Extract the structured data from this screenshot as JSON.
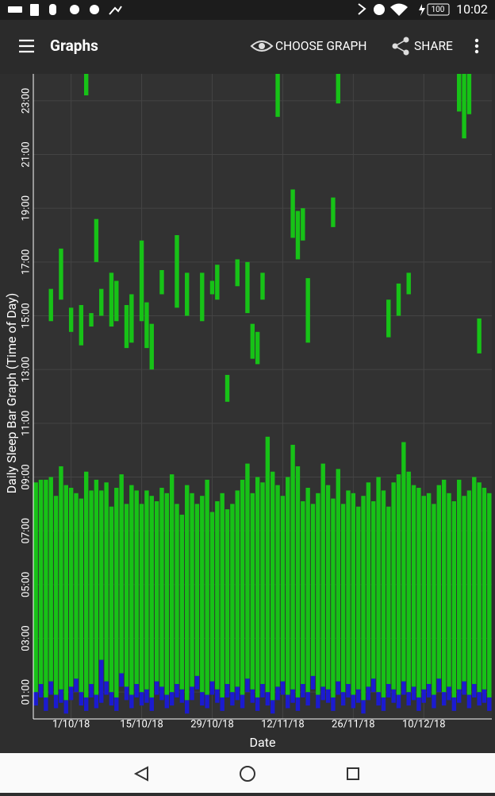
{
  "status_bar": {
    "battery": "100",
    "time": "10:02"
  },
  "app_bar": {
    "title": "Graphs",
    "actions": [
      "CHOOSE GRAPH",
      "SHARE"
    ]
  },
  "chart_data": {
    "type": "range-bar",
    "ylabel": "Daily Sleep Bar Graph (Time of Day)",
    "xlabel": "Date",
    "ylim": [
      0,
      24
    ],
    "yticks": [
      {
        "value": 1,
        "label": "01:00"
      },
      {
        "value": 3,
        "label": "03:00"
      },
      {
        "value": 5,
        "label": "05:00"
      },
      {
        "value": 7,
        "label": "07:00"
      },
      {
        "value": 9,
        "label": "09:00"
      },
      {
        "value": 11,
        "label": "11:00"
      },
      {
        "value": 13,
        "label": "13:00"
      },
      {
        "value": 15,
        "label": "15:00"
      },
      {
        "value": 17,
        "label": "17:00"
      },
      {
        "value": 19,
        "label": "19:00"
      },
      {
        "value": 21,
        "label": "21:00"
      },
      {
        "value": 23,
        "label": "23:00"
      }
    ],
    "xlim": [
      "2018-09-24",
      "2018-12-24"
    ],
    "xticks": [
      {
        "value": "2018-10-01",
        "label": "1/10/18"
      },
      {
        "value": "2018-10-15",
        "label": "15/10/18"
      },
      {
        "value": "2018-10-29",
        "label": "29/10/18"
      },
      {
        "value": "2018-11-12",
        "label": "12/11/18"
      },
      {
        "value": "2018-11-26",
        "label": "26/11/18"
      },
      {
        "value": "2018-12-10",
        "label": "10/12/18"
      }
    ],
    "grid": true,
    "colors": {
      "sleep": "#17c217",
      "onset": "#1b1bd0"
    },
    "nights": {
      "dates": [
        "2018-09-24",
        "2018-09-25",
        "2018-09-26",
        "2018-09-27",
        "2018-09-28",
        "2018-09-29",
        "2018-09-30",
        "2018-10-01",
        "2018-10-02",
        "2018-10-03",
        "2018-10-04",
        "2018-10-05",
        "2018-10-06",
        "2018-10-07",
        "2018-10-08",
        "2018-10-09",
        "2018-10-10",
        "2018-10-11",
        "2018-10-12",
        "2018-10-13",
        "2018-10-14",
        "2018-10-15",
        "2018-10-16",
        "2018-10-17",
        "2018-10-18",
        "2018-10-19",
        "2018-10-20",
        "2018-10-21",
        "2018-10-22",
        "2018-10-23",
        "2018-10-24",
        "2018-10-25",
        "2018-10-26",
        "2018-10-27",
        "2018-10-28",
        "2018-10-29",
        "2018-10-30",
        "2018-10-31",
        "2018-11-01",
        "2018-11-02",
        "2018-11-03",
        "2018-11-04",
        "2018-11-05",
        "2018-11-06",
        "2018-11-07",
        "2018-11-08",
        "2018-11-09",
        "2018-11-10",
        "2018-11-11",
        "2018-11-12",
        "2018-11-13",
        "2018-11-14",
        "2018-11-15",
        "2018-11-16",
        "2018-11-17",
        "2018-11-18",
        "2018-11-19",
        "2018-11-20",
        "2018-11-21",
        "2018-11-22",
        "2018-11-23",
        "2018-11-24",
        "2018-11-25",
        "2018-11-26",
        "2018-11-27",
        "2018-11-28",
        "2018-11-29",
        "2018-11-30",
        "2018-12-01",
        "2018-12-02",
        "2018-12-03",
        "2018-12-04",
        "2018-12-05",
        "2018-12-06",
        "2018-12-07",
        "2018-12-08",
        "2018-12-09",
        "2018-12-10",
        "2018-12-11",
        "2018-12-12",
        "2018-12-13",
        "2018-12-14",
        "2018-12-15",
        "2018-12-16",
        "2018-12-17",
        "2018-12-18",
        "2018-12-19",
        "2018-12-20",
        "2018-12-21",
        "2018-12-22",
        "2018-12-23"
      ],
      "start": [
        0.5,
        0.8,
        0.3,
        0.9,
        0.4,
        0.6,
        0.2,
        0.7,
        1.0,
        0.5,
        0.3,
        0.8,
        0.4,
        0.6,
        0.9,
        0.5,
        0.3,
        1.2,
        0.7,
        0.4,
        0.8,
        0.5,
        0.6,
        0.3,
        0.9,
        0.7,
        0.4,
        0.5,
        0.8,
        0.6,
        0.2,
        0.7,
        1.1,
        0.5,
        0.4,
        0.9,
        0.6,
        0.3,
        0.8,
        0.5,
        0.7,
        0.4,
        1.0,
        0.6,
        0.3,
        0.8,
        0.5,
        0.2,
        0.7,
        0.9,
        0.4,
        0.6,
        0.3,
        0.8,
        0.5,
        1.1,
        0.4,
        0.7,
        0.6,
        0.3,
        0.9,
        0.5,
        0.8,
        0.4,
        0.6,
        0.2,
        0.7,
        1.0,
        0.5,
        0.3,
        0.8,
        0.6,
        0.4,
        0.9,
        0.5,
        0.7,
        0.3,
        0.6,
        0.8,
        0.4,
        1.0,
        0.5,
        0.7,
        0.3,
        0.6,
        0.9,
        0.4,
        0.8,
        0.5,
        0.6,
        0.3
      ],
      "asleep": [
        1.0,
        1.3,
        0.8,
        1.4,
        0.9,
        1.1,
        0.7,
        1.2,
        1.5,
        1.0,
        0.8,
        1.3,
        0.9,
        2.2,
        1.4,
        1.0,
        0.8,
        1.7,
        1.2,
        0.9,
        1.3,
        1.0,
        1.1,
        0.8,
        1.4,
        1.2,
        0.9,
        1.0,
        1.3,
        1.1,
        0.7,
        1.2,
        1.6,
        1.0,
        0.9,
        1.4,
        1.1,
        0.8,
        1.3,
        1.0,
        1.2,
        0.9,
        1.5,
        1.1,
        0.8,
        1.3,
        1.0,
        0.7,
        1.2,
        1.4,
        0.9,
        1.1,
        0.8,
        1.3,
        1.0,
        1.6,
        0.9,
        1.2,
        1.1,
        0.8,
        1.4,
        1.0,
        1.3,
        0.9,
        1.1,
        0.7,
        1.2,
        1.5,
        1.0,
        0.8,
        1.3,
        1.1,
        0.9,
        1.4,
        1.0,
        1.2,
        0.8,
        1.1,
        1.3,
        0.9,
        1.5,
        1.0,
        1.2,
        0.8,
        1.1,
        1.4,
        0.9,
        1.3,
        1.0,
        1.1,
        0.8
      ],
      "end": [
        8.8,
        8.9,
        8.9,
        9.0,
        8.3,
        9.4,
        8.7,
        8.6,
        8.4,
        8.2,
        9.2,
        8.5,
        8.9,
        8.5,
        8.8,
        7.9,
        8.6,
        9.1,
        8.0,
        8.7,
        8.5,
        8.0,
        8.5,
        8.3,
        8.1,
        8.6,
        8.4,
        9.1,
        8.0,
        7.6,
        8.7,
        8.4,
        8.0,
        8.3,
        8.9,
        7.7,
        8.1,
        8.4,
        7.8,
        8.0,
        8.5,
        8.9,
        9.5,
        8.4,
        9.0,
        8.8,
        10.5,
        9.2,
        8.7,
        8.3,
        9.0,
        10.2,
        9.4,
        8.1,
        8.6,
        8.0,
        8.4,
        9.5,
        8.7,
        8.2,
        9.3,
        8.0,
        8.5,
        8.4,
        7.9,
        8.3,
        8.8,
        8.1,
        9.0,
        8.5,
        7.9,
        8.8,
        9.1,
        10.3,
        9.2,
        8.7,
        8.6,
        8.3,
        8.4,
        8.0,
        8.7,
        8.9,
        8.4,
        8.1,
        8.9,
        8.3,
        8.5,
        9.0,
        8.8,
        8.6,
        8.4
      ]
    },
    "naps": {
      "dates": [
        "2018-09-27",
        "2018-09-29",
        "2018-10-01",
        "2018-10-03",
        "2018-10-04",
        "2018-10-05",
        "2018-10-06",
        "2018-10-07",
        "2018-10-09",
        "2018-10-10",
        "2018-10-12",
        "2018-10-13",
        "2018-10-15",
        "2018-10-16",
        "2018-10-17",
        "2018-10-19",
        "2018-10-22",
        "2018-10-24",
        "2018-10-27",
        "2018-10-29",
        "2018-10-30",
        "2018-11-01",
        "2018-11-03",
        "2018-11-05",
        "2018-11-06",
        "2018-11-07",
        "2018-11-08",
        "2018-11-11",
        "2018-11-14",
        "2018-11-15",
        "2018-11-16",
        "2018-11-17",
        "2018-11-22",
        "2018-11-23",
        "2018-12-03",
        "2018-12-05",
        "2018-12-07",
        "2018-12-17",
        "2018-12-18",
        "2018-12-19",
        "2018-12-21"
      ],
      "start": [
        14.8,
        15.6,
        14.4,
        13.9,
        23.2,
        14.6,
        17.0,
        15.0,
        14.6,
        14.8,
        13.8,
        14.0,
        14.8,
        13.8,
        13.0,
        15.8,
        15.3,
        15.0,
        14.8,
        15.8,
        15.6,
        11.8,
        16.1,
        15.1,
        13.4,
        13.2,
        15.6,
        22.4,
        17.9,
        17.1,
        17.8,
        14.0,
        18.3,
        22.9,
        14.2,
        15.0,
        15.8,
        22.6,
        21.6,
        22.5,
        13.6
      ],
      "end": [
        16.0,
        17.5,
        15.3,
        15.4,
        24,
        15.1,
        18.6,
        16.0,
        16.6,
        16.3,
        15.4,
        15.8,
        17.8,
        15.5,
        14.7,
        16.7,
        18.0,
        16.6,
        16.6,
        16.3,
        16.9,
        12.8,
        17.1,
        17.0,
        14.7,
        14.4,
        16.6,
        24,
        19.7,
        18.9,
        19.0,
        16.4,
        19.4,
        24,
        15.6,
        16.2,
        16.6,
        24,
        24,
        24,
        14.9
      ]
    }
  }
}
